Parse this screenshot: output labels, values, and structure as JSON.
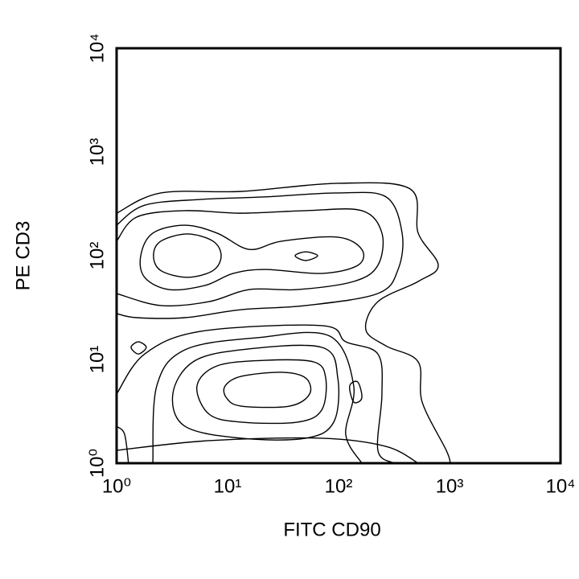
{
  "chart_data": {
    "type": "contour",
    "x_label": "FITC CD90",
    "y_label": "PE CD3",
    "xscale": "log",
    "yscale": "log",
    "xlim": [
      1,
      10000
    ],
    "ylim": [
      1,
      10000
    ],
    "xticks": [
      {
        "value": 1,
        "label": "10⁰"
      },
      {
        "value": 10,
        "label": "10¹"
      },
      {
        "value": 100,
        "label": "10²"
      },
      {
        "value": 1000,
        "label": "10³"
      },
      {
        "value": 10000,
        "label": "10⁴"
      }
    ],
    "yticks": [
      {
        "value": 1,
        "label": "10⁰"
      },
      {
        "value": 10,
        "label": "10¹"
      },
      {
        "value": 100,
        "label": "10²"
      },
      {
        "value": 1000,
        "label": "10³"
      },
      {
        "value": 10000,
        "label": "10⁴"
      }
    ],
    "color": "#000000",
    "contours": [
      {
        "closed": true,
        "x": [
          2.15,
          2.5,
          4.34,
          7.4,
          8.75,
          7.4,
          4.34,
          2.5
        ],
        "y": [
          100,
          138,
          162,
          138,
          100,
          72,
          62,
          72
        ]
      },
      {
        "closed": true,
        "x": [
          40.6,
          50.5,
          64.8,
          50.5
        ],
        "y": [
          100,
          109,
          100,
          90
        ]
      },
      {
        "closed": true,
        "x": [
          9.5,
          13.3,
          30.6,
          50.5,
          54.8,
          36.1,
          13.3,
          9.8
        ],
        "y": [
          5.55,
          6.88,
          7.52,
          6.63,
          4.64,
          3.55,
          3.55,
          4.25
        ]
      },
      {
        "closed": true,
        "x": [
          1.65,
          2.12,
          4.13,
          8.05,
          15.7,
          30.6,
          98.4,
          162,
          149,
          70.4,
          21.9,
          11.2,
          6.27,
          2.96,
          1.79
        ],
        "y": [
          100,
          165,
          197,
          165,
          115,
          138,
          151,
          115,
          80.7,
          67.5,
          73.8,
          67.5,
          51.7,
          47.2,
          61.8
        ]
      },
      {
        "closed": false,
        "x": [
          1,
          1.52,
          4.13,
          13.3,
          50.5,
          162,
          246,
          226,
          137,
          42.7,
          15.7,
          6.81,
          2.5,
          1
        ],
        "y": [
          138,
          236,
          272,
          257,
          272,
          272,
          165,
          80.7,
          56.5,
          47.2,
          47.2,
          36.1,
          33.1,
          43.2
        ]
      },
      {
        "closed": false,
        "x": [
          1,
          1.79,
          5.77,
          21.9,
          98.4,
          268,
          374,
          344,
          226,
          50.5,
          13.3,
          4.13,
          1.52,
          1
        ],
        "y": [
          197,
          307,
          349,
          369,
          403,
          369,
          165,
          73.8,
          43.2,
          33.1,
          30.2,
          25.3,
          25.3,
          27.7
        ]
      },
      {
        "closed": false,
        "x": [
          1,
          2.5,
          13.3,
          98.4,
          442,
          522,
          792,
          522,
          226,
          176,
          268,
          522,
          567,
          935,
          1016
        ],
        "y": [
          257,
          403,
          417,
          499,
          440,
          165,
          80.7,
          56.5,
          36.1,
          19.4,
          13.5,
          9.48,
          3.88,
          1.33,
          1
        ]
      },
      {
        "closed": true,
        "x": [
          1.35,
          1.57,
          1.85,
          1.57
        ],
        "y": [
          13.1,
          14.8,
          13.1,
          11.3
        ]
      },
      {
        "closed": true,
        "x": [
          5.3,
          8.05,
          21.9,
          59.6,
          76.6,
          70.4,
          42.7,
          13.3,
          6.81
        ],
        "y": [
          5.55,
          8.67,
          9.82,
          9.48,
          6.63,
          3.25,
          2.49,
          2.49,
          2.97
        ]
      },
      {
        "closed": true,
        "x": [
          3.21,
          4.88,
          13.3,
          70.4,
          98.4,
          90.5,
          50.5,
          13.3,
          4.13
        ],
        "y": [
          4.64,
          9.48,
          12.4,
          13.1,
          6.63,
          2.49,
          1.74,
          1.74,
          2.27
        ]
      },
      {
        "closed": false,
        "x": [
          2.12,
          2.3,
          4.13,
          18.5,
          83.2,
          137,
          116,
          162
        ],
        "y": [
          1,
          5.55,
          12.4,
          16.2,
          16.8,
          5.55,
          1.9,
          1
        ]
      },
      {
        "closed": false,
        "x": [
          1,
          1.79,
          5.77,
          70.4,
          116,
          226,
          246,
          226,
          316
        ],
        "y": [
          4.64,
          11.3,
          18.7,
          21.2,
          14.8,
          11.3,
          4.64,
          1.33,
          1
        ]
      },
      {
        "closed": false,
        "x": [
          1,
          1.18,
          1.28
        ],
        "y": [
          2.27,
          1.9,
          1
        ]
      },
      {
        "closed": false,
        "x": [
          1,
          6.81,
          70.4,
          268,
          522
        ],
        "y": [
          1.33,
          1.65,
          1.74,
          1.45,
          1
        ]
      },
      {
        "closed": true,
        "x": [
          126,
          149,
          162,
          137
        ],
        "y": [
          5.55,
          6.06,
          4.25,
          3.88
        ]
      }
    ]
  }
}
